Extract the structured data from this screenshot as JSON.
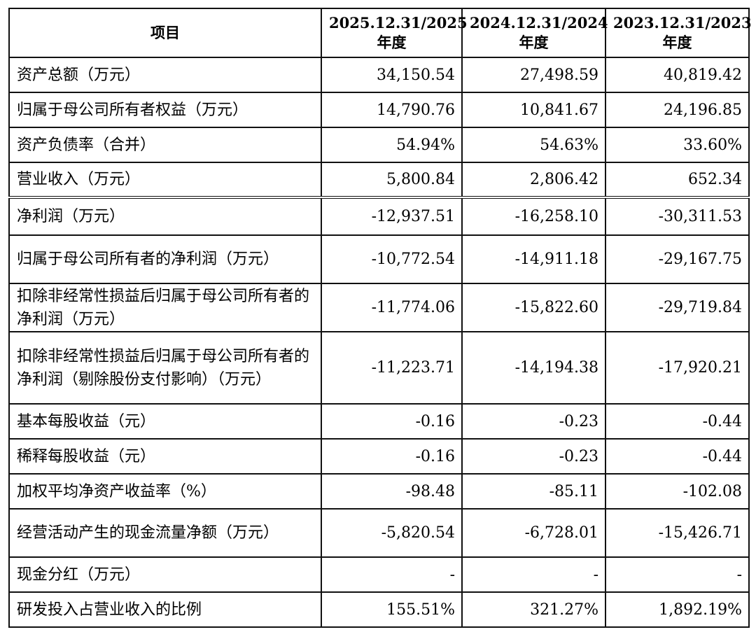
{
  "table": {
    "headers": {
      "item": "项目",
      "col1_year": "2025.12.31/2025",
      "col1_suffix": "年度",
      "col2_year": "2024.12.31/2024",
      "col2_suffix": "年度",
      "col3_year": "2023.12.31/2023",
      "col3_suffix": "年度"
    },
    "rows": [
      {
        "label": "资产总额（万元）",
        "v2025": "34,150.54",
        "v2024": "27,498.59",
        "v2023": "40,819.42"
      },
      {
        "label": "归属于母公司所有者权益（万元）",
        "v2025": "14,790.76",
        "v2024": "10,841.67",
        "v2023": "24,196.85"
      },
      {
        "label": "资产负债率（合并）",
        "v2025": "54.94%",
        "v2024": "54.63%",
        "v2023": "33.60%"
      },
      {
        "label": "营业收入（万元）",
        "v2025": "5,800.84",
        "v2024": "2,806.42",
        "v2023": "652.34"
      },
      {
        "label": "净利润（万元）",
        "v2025": "-12,937.51",
        "v2024": "-16,258.10",
        "v2023": "-30,311.53"
      },
      {
        "label": "归属于母公司所有者的净利润（万元）",
        "v2025": "-10,772.54",
        "v2024": "-14,911.18",
        "v2023": "-29,167.75"
      },
      {
        "label": "扣除非经常性损益后归属于母公司所有者的净利润（万元）",
        "v2025": "-11,774.06",
        "v2024": "-15,822.60",
        "v2023": "-29,719.84"
      },
      {
        "label": "扣除非经常性损益后归属于母公司所有者的净利润（剔除股份支付影响）（万元）",
        "v2025": "-11,223.71",
        "v2024": "-14,194.38",
        "v2023": "-17,920.21"
      },
      {
        "label": "基本每股收益（元）",
        "v2025": "-0.16",
        "v2024": "-0.23",
        "v2023": "-0.44"
      },
      {
        "label": "稀释每股收益（元）",
        "v2025": "-0.16",
        "v2024": "-0.23",
        "v2023": "-0.44"
      },
      {
        "label": "加权平均净资产收益率（%）",
        "v2025": "-98.48",
        "v2024": "-85.11",
        "v2023": "-102.08"
      },
      {
        "label": "经营活动产生的现金流量净额（万元）",
        "v2025": "-5,820.54",
        "v2024": "-6,728.01",
        "v2023": "-15,426.71"
      },
      {
        "label": "现金分红（万元）",
        "v2025": "-",
        "v2024": "-",
        "v2023": "-"
      },
      {
        "label": "研发投入占营业收入的比例",
        "v2025": "155.51%",
        "v2024": "321.27%",
        "v2023": "1,892.19%"
      }
    ]
  }
}
